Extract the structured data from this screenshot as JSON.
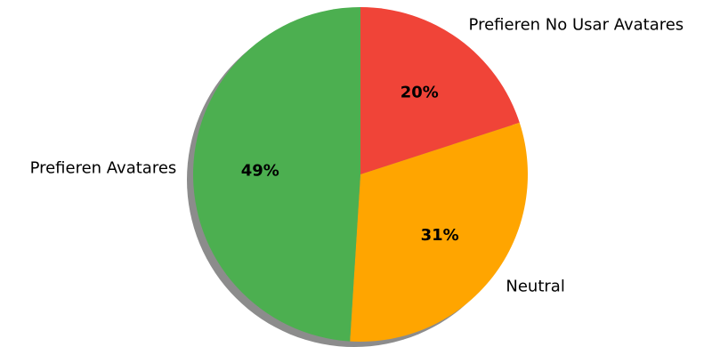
{
  "chart_data": {
    "type": "pie",
    "title": "",
    "start_angle_deg": 90,
    "direction": "clockwise",
    "shadow": true,
    "slices": [
      {
        "label": "Prefieren No Usar Avatares",
        "value": 20,
        "pct_label": "20%",
        "color": "#f04438"
      },
      {
        "label": "Neutral",
        "value": 31,
        "pct_label": "31%",
        "color": "#ffa500"
      },
      {
        "label": "Prefieren Avatares",
        "value": 49,
        "pct_label": "49%",
        "color": "#4caf50"
      }
    ]
  }
}
